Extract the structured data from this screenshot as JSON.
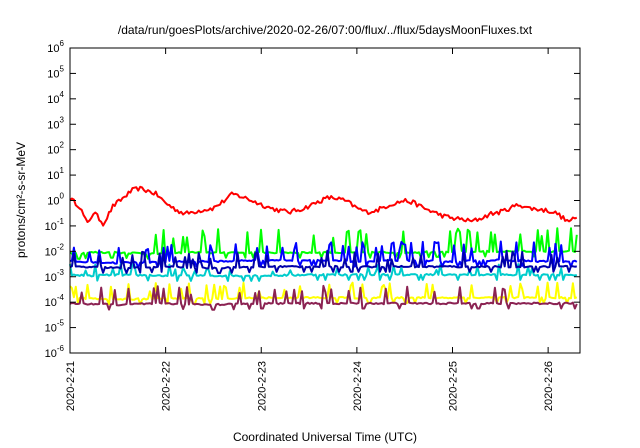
{
  "chart_data": {
    "type": "line",
    "title": "/data/run/goesPlots/archive/2020-02-26/07:00/flux/../flux/5daysMoonFluxes.txt",
    "xlabel": "Coordinated Universal Time (UTC)",
    "ylabel": "protons/cm²-s-sr-MeV",
    "y_scale": "log",
    "ylim": [
      1e-06,
      1000000.0
    ],
    "x_range": [
      "2020-02-21",
      "2020-02-26 08:00"
    ],
    "grid": false,
    "y_ticks": [
      {
        "base": "10",
        "exp": "-6",
        "value": 1e-06
      },
      {
        "base": "10",
        "exp": "-5",
        "value": 1e-05
      },
      {
        "base": "10",
        "exp": "-4",
        "value": 0.0001
      },
      {
        "base": "10",
        "exp": "-3",
        "value": 0.001
      },
      {
        "base": "10",
        "exp": "-2",
        "value": 0.01
      },
      {
        "base": "10",
        "exp": "-1",
        "value": 0.1
      },
      {
        "base": "10",
        "exp": "0",
        "value": 1
      },
      {
        "base": "10",
        "exp": "1",
        "value": 10
      },
      {
        "base": "10",
        "exp": "2",
        "value": 100
      },
      {
        "base": "10",
        "exp": "3",
        "value": 1000
      },
      {
        "base": "10",
        "exp": "4",
        "value": 10000
      },
      {
        "base": "10",
        "exp": "5",
        "value": 100000
      },
      {
        "base": "10",
        "exp": "6",
        "value": 1000000
      }
    ],
    "x_ticks": [
      "2020-2-21",
      "2020-2-22",
      "2020-2-23",
      "2020-2-24",
      "2020-2-25",
      "2020-2-26"
    ],
    "series": [
      {
        "color": "#ff0000",
        "width": 2,
        "spike": 1.5,
        "values": [
          [
            0,
            1.2
          ],
          [
            0.1,
            0.6
          ],
          [
            0.18,
            0.12
          ],
          [
            0.25,
            0.35
          ],
          [
            0.35,
            0.12
          ],
          [
            0.45,
            0.6
          ],
          [
            0.55,
            1.2
          ],
          [
            0.65,
            2.5
          ],
          [
            0.72,
            3.0
          ],
          [
            0.8,
            2.5
          ],
          [
            0.9,
            1.8
          ],
          [
            1.0,
            0.8
          ],
          [
            1.1,
            0.45
          ],
          [
            1.2,
            0.3
          ],
          [
            1.35,
            0.4
          ],
          [
            1.5,
            0.5
          ],
          [
            1.6,
            0.9
          ],
          [
            1.7,
            1.8
          ],
          [
            1.8,
            1.4
          ],
          [
            1.9,
            1.0
          ],
          [
            2.0,
            0.7
          ],
          [
            2.1,
            0.5
          ],
          [
            2.2,
            0.4
          ],
          [
            2.3,
            0.35
          ],
          [
            2.45,
            0.5
          ],
          [
            2.6,
            0.9
          ],
          [
            2.7,
            1.3
          ],
          [
            2.8,
            1.2
          ],
          [
            2.9,
            0.9
          ],
          [
            3.0,
            0.5
          ],
          [
            3.1,
            0.35
          ],
          [
            3.2,
            0.4
          ],
          [
            3.35,
            0.7
          ],
          [
            3.5,
            1.0
          ],
          [
            3.6,
            0.8
          ],
          [
            3.7,
            0.5
          ],
          [
            3.8,
            0.35
          ],
          [
            3.9,
            0.25
          ],
          [
            4.0,
            0.2
          ],
          [
            4.1,
            0.18
          ],
          [
            4.2,
            0.15
          ],
          [
            4.3,
            0.2
          ],
          [
            4.4,
            0.3
          ],
          [
            4.5,
            0.35
          ],
          [
            4.6,
            0.5
          ],
          [
            4.7,
            0.7
          ],
          [
            4.8,
            0.5
          ],
          [
            4.9,
            0.45
          ],
          [
            5.0,
            0.4
          ],
          [
            5.1,
            0.3
          ],
          [
            5.2,
            0.15
          ],
          [
            5.3,
            0.2
          ]
        ]
      },
      {
        "color": "#00ff00",
        "width": 2,
        "spike": 6,
        "values": [
          [
            0,
            0.009
          ],
          [
            0.1,
            0.008
          ],
          [
            0.2,
            0.009
          ],
          [
            0.5,
            0.009
          ],
          [
            0.9,
            0.008
          ],
          [
            1.2,
            0.009
          ],
          [
            1.6,
            0.009
          ],
          [
            2.0,
            0.009
          ],
          [
            2.5,
            0.009
          ],
          [
            3.0,
            0.009
          ],
          [
            3.5,
            0.009
          ],
          [
            4.0,
            0.01
          ],
          [
            4.5,
            0.01
          ],
          [
            5.0,
            0.01
          ],
          [
            5.3,
            0.01
          ]
        ]
      },
      {
        "color": "#00cccc",
        "width": 2,
        "spike": 2,
        "values": [
          [
            0,
            0.0012
          ],
          [
            0.2,
            0.0011
          ],
          [
            0.5,
            0.0012
          ],
          [
            1.0,
            0.0011
          ],
          [
            1.5,
            0.0011
          ],
          [
            2.0,
            0.0011
          ],
          [
            2.5,
            0.0012
          ],
          [
            3.0,
            0.0012
          ],
          [
            3.5,
            0.0012
          ],
          [
            4.0,
            0.0012
          ],
          [
            4.5,
            0.0012
          ],
          [
            5.0,
            0.0012
          ],
          [
            5.3,
            0.0012
          ]
        ]
      },
      {
        "color": "#0000ff",
        "width": 2,
        "spike": 4,
        "values": [
          [
            0,
            0.004
          ],
          [
            0.5,
            0.0035
          ],
          [
            1.0,
            0.004
          ],
          [
            1.5,
            0.004
          ],
          [
            2.0,
            0.0045
          ],
          [
            2.5,
            0.0045
          ],
          [
            3.0,
            0.004
          ],
          [
            3.5,
            0.0045
          ],
          [
            4.0,
            0.004
          ],
          [
            4.5,
            0.0045
          ],
          [
            5.0,
            0.004
          ],
          [
            5.3,
            0.004
          ]
        ]
      },
      {
        "color": "#0000aa",
        "width": 2,
        "spike": 3,
        "values": [
          [
            0,
            0.0025
          ],
          [
            0.5,
            0.0022
          ],
          [
            1.0,
            0.0025
          ],
          [
            1.5,
            0.0022
          ],
          [
            2.0,
            0.0025
          ],
          [
            2.5,
            0.0025
          ],
          [
            3.0,
            0.0025
          ],
          [
            3.5,
            0.0025
          ],
          [
            4.0,
            0.0025
          ],
          [
            4.5,
            0.0025
          ],
          [
            5.0,
            0.0025
          ],
          [
            5.3,
            0.0025
          ]
        ]
      },
      {
        "color": "#ffff00",
        "width": 2,
        "spike": 3,
        "values": [
          [
            0,
            0.00015
          ],
          [
            0.5,
            0.00013
          ],
          [
            1.0,
            0.00014
          ],
          [
            1.5,
            0.00014
          ],
          [
            2.0,
            0.00015
          ],
          [
            2.5,
            0.00015
          ],
          [
            3.0,
            0.00015
          ],
          [
            3.5,
            0.00015
          ],
          [
            4.0,
            0.00015
          ],
          [
            4.5,
            0.00015
          ],
          [
            5.0,
            0.00015
          ],
          [
            5.3,
            0.00015
          ]
        ]
      },
      {
        "color": "#8b2252",
        "width": 2,
        "spike": 3.5,
        "values": [
          [
            0,
            9e-05
          ],
          [
            0.5,
            8e-05
          ],
          [
            1.0,
            9e-05
          ],
          [
            1.5,
            8e-05
          ],
          [
            2.0,
            9e-05
          ],
          [
            2.5,
            9e-05
          ],
          [
            3.0,
            9e-05
          ],
          [
            3.5,
            9e-05
          ],
          [
            4.0,
            9e-05
          ],
          [
            4.5,
            9e-05
          ],
          [
            5.0,
            9e-05
          ],
          [
            5.3,
            9e-05
          ]
        ]
      }
    ]
  }
}
